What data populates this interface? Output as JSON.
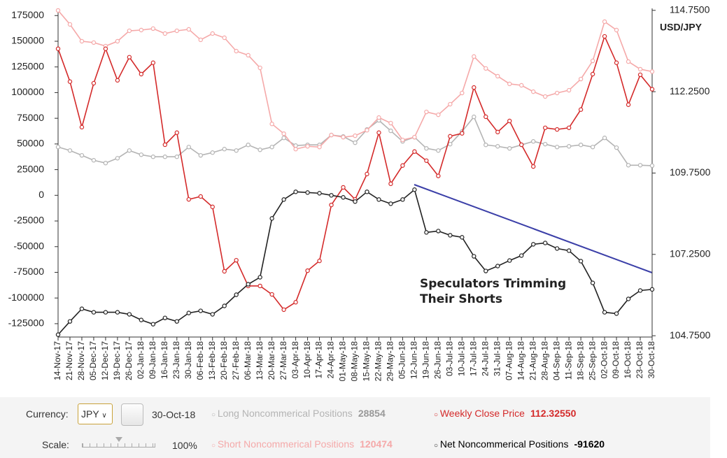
{
  "chart_data": {
    "type": "line",
    "categories": [
      "14-Nov-17",
      "21-Nov-17",
      "28-Nov-17",
      "05-Dec-17",
      "12-Dec-17",
      "19-Dec-17",
      "26-Dec-17",
      "02-Jan-18",
      "09-Jan-18",
      "16-Jan-18",
      "23-Jan-18",
      "30-Jan-18",
      "06-Feb-18",
      "13-Feb-18",
      "20-Feb-18",
      "27-Feb-18",
      "06-Mar-18",
      "13-Mar-18",
      "20-Mar-18",
      "27-Mar-18",
      "03-Apr-18",
      "10-Apr-18",
      "17-Apr-18",
      "24-Apr-18",
      "01-May-18",
      "08-May-18",
      "15-May-18",
      "22-May-18",
      "29-May-18",
      "05-Jun-18",
      "12-Jun-18",
      "19-Jun-18",
      "26-Jun-18",
      "03-Jul-18",
      "10-Jul-18",
      "17-Jul-18",
      "24-Jul-18",
      "31-Jul-18",
      "07-Aug-18",
      "14-Aug-18",
      "21-Aug-18",
      "28-Aug-18",
      "04-Sep-18",
      "11-Sep-18",
      "18-Sep-18",
      "25-Sep-18",
      "02-Oct-18",
      "09-Oct-18",
      "16-Oct-18",
      "23-Oct-18",
      "30-Oct-18"
    ],
    "series": [
      {
        "name": "Long Noncommerical Positions",
        "color": "#b4b4b4",
        "axis": "y",
        "values": [
          47000,
          43600,
          38900,
          34100,
          31400,
          36100,
          43600,
          39500,
          37500,
          37500,
          37500,
          47000,
          38900,
          41600,
          45000,
          43600,
          49100,
          44300,
          47000,
          55900,
          48400,
          49100,
          49100,
          58700,
          57300,
          51200,
          64100,
          73000,
          62800,
          52500,
          56600,
          45700,
          43600,
          49800,
          62100,
          76400,
          49100,
          47700,
          45700,
          49100,
          52500,
          49800,
          47000,
          47700,
          49100,
          47000,
          55900,
          46400,
          29300,
          29300,
          28854
        ]
      },
      {
        "name": "Short Noncommerical Positions",
        "color": "#f5a9a9",
        "axis": "y",
        "values": [
          180000,
          166400,
          150000,
          148700,
          145300,
          150000,
          160200,
          160900,
          162300,
          157500,
          160200,
          161600,
          151400,
          157500,
          153400,
          140400,
          136400,
          124100,
          69500,
          60000,
          45000,
          47700,
          47000,
          58700,
          56600,
          58000,
          63400,
          75700,
          70300,
          53900,
          56600,
          81200,
          78400,
          88700,
          99600,
          135100,
          123500,
          116000,
          108500,
          107100,
          100900,
          96200,
          99600,
          102300,
          113200,
          130900,
          169100,
          160900,
          130200,
          122800,
          120474
        ]
      },
      {
        "name": "Weekly Close Price",
        "color": "#d42a2a",
        "axis": "y2",
        "last_label": "112.32550",
        "values": [
          113.57,
          112.56,
          111.16,
          112.51,
          113.57,
          112.6,
          113.31,
          112.79,
          113.14,
          110.62,
          110.99,
          108.94,
          109.03,
          108.71,
          106.73,
          107.07,
          106.28,
          106.28,
          106.02,
          105.55,
          105.78,
          106.75,
          107.05,
          108.77,
          109.31,
          108.94,
          109.72,
          110.99,
          109.42,
          109.98,
          110.41,
          110.13,
          109.66,
          110.88,
          110.97,
          112.38,
          111.48,
          111.01,
          111.35,
          110.62,
          109.95,
          111.14,
          111.09,
          111.14,
          111.7,
          112.79,
          113.95,
          113.14,
          111.85,
          112.77,
          112.3255
        ]
      },
      {
        "name": "Net Noncommerical Positions",
        "color": "#222222",
        "axis": "y",
        "values": [
          -135700,
          -122800,
          -110500,
          -113900,
          -113900,
          -113900,
          -115900,
          -121400,
          -125500,
          -119400,
          -122800,
          -114600,
          -112500,
          -115900,
          -107700,
          -96800,
          -86600,
          -79800,
          -22500,
          -4100,
          3400,
          2700,
          2000,
          0,
          -2000,
          -6100,
          3400,
          -4100,
          -8200,
          -4100,
          5500,
          -36100,
          -34800,
          -38900,
          -40900,
          -59400,
          -73700,
          -68900,
          -63500,
          -58700,
          -47700,
          -46400,
          -51800,
          -53900,
          -64100,
          -85300,
          -113900,
          -115200,
          -100900,
          -92700,
          -91620
        ]
      }
    ],
    "ylim": [
      -138000,
      182000
    ],
    "yticks": [
      175000,
      150000,
      125000,
      100000,
      75000,
      50000,
      25000,
      0,
      -25000,
      -50000,
      -75000,
      -100000,
      -125000
    ],
    "y2lim": [
      104.71,
      114.81
    ],
    "y2ticks": [
      {
        "value": 114.75,
        "label": "114.7500"
      },
      {
        "value": 112.25,
        "label": "112.2500"
      },
      {
        "value": 109.75,
        "label": "109.7500"
      },
      {
        "value": 107.25,
        "label": "107.2500"
      },
      {
        "value": 104.75,
        "label": "104.7500"
      }
    ],
    "y2label": "USD/JPY",
    "annotation": [
      "Speculators Trimming",
      "Their Shorts"
    ]
  },
  "controls": {
    "currency_label": "Currency:",
    "currency": "JPY",
    "date": "30-Oct-18",
    "scale_label": "Scale:",
    "scale": "100%"
  }
}
